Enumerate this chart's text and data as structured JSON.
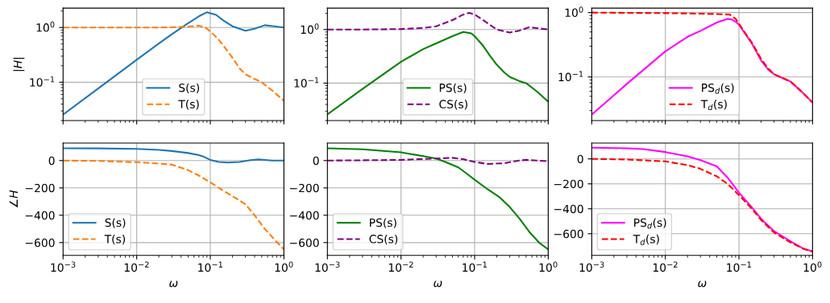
{
  "chart_data": [
    {
      "type": "line",
      "log": "xy",
      "ylabel": "|H|",
      "xlim": [
        0.001,
        1
      ],
      "ylim": [
        0.02,
        2.25
      ],
      "xticks": [
        {
          "value": 0.001,
          "label": null
        },
        {
          "value": 0.01,
          "label": null
        },
        {
          "value": 0.1,
          "label": null
        },
        {
          "value": 1,
          "label": null
        }
      ],
      "yticks": [
        {
          "value": 0.1,
          "label": "10$^{−1}$"
        },
        {
          "value": 1,
          "label": "10$^{0}$"
        }
      ],
      "tick_labels": "y",
      "grid": true,
      "legend": "bottom",
      "series": [
        {
          "name": "S(s)",
          "color": "#1f77b4",
          "line_style": "solid",
          "x": [
            0.001,
            0.003,
            0.01,
            0.02,
            0.03,
            0.04,
            0.05,
            0.07,
            0.09,
            0.12,
            0.15,
            0.2,
            0.3,
            0.4,
            0.55,
            0.7,
            1
          ],
          "values": [
            0.0258,
            0.077,
            0.258,
            0.51,
            0.75,
            0.98,
            1.2,
            1.6,
            1.9,
            1.7,
            1.35,
            1.05,
            0.87,
            0.95,
            1.1,
            1.06,
            1.0
          ]
        },
        {
          "name": "T(s)",
          "color": "#ff7f0e",
          "line_style": "dashed",
          "x": [
            0.001,
            0.003,
            0.01,
            0.02,
            0.03,
            0.05,
            0.07,
            0.085,
            0.1,
            0.13,
            0.16,
            0.2,
            0.25,
            0.3,
            0.4,
            0.5,
            0.7,
            1
          ],
          "values": [
            1.0,
            1.0,
            1.0,
            1.0,
            1.01,
            1.04,
            1.08,
            1.0,
            0.85,
            0.6,
            0.42,
            0.28,
            0.18,
            0.14,
            0.115,
            0.1,
            0.07,
            0.046
          ]
        }
      ]
    },
    {
      "type": "line",
      "log": "xy",
      "xlim": [
        0.001,
        1
      ],
      "ylim": [
        0.02,
        2.5
      ],
      "xticks": [
        {
          "value": 0.001,
          "label": null
        },
        {
          "value": 0.01,
          "label": null
        },
        {
          "value": 0.1,
          "label": null
        },
        {
          "value": 1,
          "label": null
        }
      ],
      "yticks": [
        {
          "value": 0.1,
          "label": "10$^{−1}$"
        },
        {
          "value": 1,
          "label": "10$^{0}$"
        }
      ],
      "tick_labels": "y",
      "grid": true,
      "legend": "bottom",
      "series": [
        {
          "name": "PS(s)",
          "color": "#008000",
          "line_style": "solid",
          "x": [
            0.001,
            0.003,
            0.01,
            0.02,
            0.03,
            0.05,
            0.07,
            0.09,
            0.1,
            0.13,
            0.16,
            0.2,
            0.25,
            0.3,
            0.4,
            0.5,
            0.7,
            1
          ],
          "values": [
            0.026,
            0.078,
            0.25,
            0.43,
            0.55,
            0.75,
            0.9,
            0.85,
            0.75,
            0.5,
            0.33,
            0.22,
            0.16,
            0.13,
            0.11,
            0.1,
            0.07,
            0.045
          ]
        },
        {
          "name": "CS(s)",
          "color": "#800080",
          "line_style": "dashed",
          "x": [
            0.001,
            0.003,
            0.01,
            0.02,
            0.03,
            0.05,
            0.07,
            0.085,
            0.1,
            0.13,
            0.2,
            0.3,
            0.4,
            0.55,
            0.7,
            1
          ],
          "values": [
            1.0,
            1.0,
            1.02,
            1.07,
            1.15,
            1.5,
            1.9,
            2.05,
            1.9,
            1.5,
            1.0,
            0.88,
            0.95,
            1.1,
            1.06,
            1.0
          ]
        }
      ]
    },
    {
      "type": "line",
      "log": "xy",
      "xlim": [
        0.001,
        1
      ],
      "ylim": [
        0.021,
        1.17
      ],
      "xticks": [
        {
          "value": 0.001,
          "label": null
        },
        {
          "value": 0.01,
          "label": null
        },
        {
          "value": 0.1,
          "label": null
        },
        {
          "value": 1,
          "label": null
        }
      ],
      "yticks": [
        {
          "value": 0.1,
          "label": "10$^{−1}$"
        },
        {
          "value": 1,
          "label": "10$^{0}$"
        }
      ],
      "tick_labels": "y",
      "grid": true,
      "legend": "bottom",
      "series": [
        {
          "name": "PS$_{d}$(s)",
          "color": "#ff00ff",
          "line_style": "solid",
          "x": [
            0.001,
            0.003,
            0.01,
            0.02,
            0.03,
            0.05,
            0.07,
            0.08,
            0.09,
            0.1,
            0.13,
            0.15,
            0.2,
            0.25,
            0.3,
            0.4,
            0.5,
            0.7,
            1
          ],
          "values": [
            0.026,
            0.078,
            0.25,
            0.42,
            0.52,
            0.7,
            0.8,
            0.78,
            0.72,
            0.65,
            0.42,
            0.33,
            0.18,
            0.13,
            0.11,
            0.095,
            0.085,
            0.06,
            0.04
          ]
        },
        {
          "name": "T$_{d}$(s)",
          "color": "#ff0000",
          "line_style": "dashed",
          "x": [
            0.001,
            0.003,
            0.01,
            0.02,
            0.03,
            0.05,
            0.075,
            0.09,
            0.1,
            0.13,
            0.15,
            0.2,
            0.25,
            0.3,
            0.4,
            0.5,
            0.7,
            1
          ],
          "values": [
            1.0,
            0.99,
            0.98,
            0.97,
            0.96,
            0.95,
            0.93,
            0.8,
            0.67,
            0.43,
            0.34,
            0.19,
            0.135,
            0.11,
            0.095,
            0.085,
            0.06,
            0.04
          ]
        }
      ]
    },
    {
      "type": "line",
      "log": "x",
      "ylabel": "∠H",
      "xlabel": "ω",
      "xlim": [
        0.001,
        1
      ],
      "ylim": [
        -694,
        128
      ],
      "xticks": [
        {
          "value": 0.001,
          "label": "10$^{−3}$"
        },
        {
          "value": 0.01,
          "label": "10$^{−2}$"
        },
        {
          "value": 0.1,
          "label": "10$^{−1}$"
        },
        {
          "value": 1,
          "label": "10$^{0}$"
        }
      ],
      "yticks": [
        {
          "value": -600,
          "label": "−600"
        },
        {
          "value": -400,
          "label": "−400"
        },
        {
          "value": -200,
          "label": "−200"
        },
        0
      ],
      "grid": true,
      "legend": "bottom left",
      "series": [
        {
          "name": "S(s)",
          "color": "#1f77b4",
          "line_style": "solid",
          "x": [
            0.001,
            0.003,
            0.01,
            0.02,
            0.03,
            0.05,
            0.07,
            0.08,
            0.1,
            0.13,
            0.17,
            0.25,
            0.35,
            0.45,
            0.6,
            0.7,
            1
          ],
          "values": [
            90,
            89,
            85,
            78,
            70,
            55,
            40,
            30,
            5,
            -10,
            -15,
            -10,
            3,
            8,
            3,
            0,
            0
          ]
        },
        {
          "name": "T(s)",
          "color": "#ff7f0e",
          "line_style": "dashed",
          "x": [
            0.001,
            0.003,
            0.01,
            0.02,
            0.03,
            0.05,
            0.07,
            0.1,
            0.15,
            0.2,
            0.3,
            0.4,
            0.55,
            0.75,
            1
          ],
          "values": [
            0,
            -3,
            -12,
            -22,
            -30,
            -70,
            -110,
            -160,
            -220,
            -260,
            -320,
            -400,
            -500,
            -580,
            -650
          ]
        }
      ]
    },
    {
      "type": "line",
      "log": "x",
      "xlabel": "ω",
      "xlim": [
        0.001,
        1
      ],
      "ylim": [
        -694,
        128
      ],
      "xticks": [
        {
          "value": 0.001,
          "label": "10$^{−3}$"
        },
        {
          "value": 0.01,
          "label": "10$^{−2}$"
        },
        {
          "value": 0.1,
          "label": "10$^{−1}$"
        },
        {
          "value": 1,
          "label": "10$^{0}$"
        }
      ],
      "yticks": [
        {
          "value": -600,
          "label": "−600"
        },
        {
          "value": -400,
          "label": "−400"
        },
        {
          "value": -200,
          "label": "−200"
        },
        0
      ],
      "grid": true,
      "legend": "bottom left",
      "series": [
        {
          "name": "PS(s)",
          "color": "#008000",
          "line_style": "solid",
          "x": [
            0.001,
            0.003,
            0.01,
            0.02,
            0.03,
            0.04,
            0.06,
            0.08,
            0.1,
            0.15,
            0.22,
            0.3,
            0.4,
            0.55,
            0.75,
            1
          ],
          "values": [
            90,
            82,
            60,
            32,
            15,
            -10,
            -50,
            -100,
            -140,
            -210,
            -270,
            -340,
            -420,
            -520,
            -600,
            -650
          ]
        },
        {
          "name": "CS(s)",
          "color": "#800080",
          "line_style": "dashed",
          "x": [
            0.001,
            0.003,
            0.01,
            0.03,
            0.05,
            0.07,
            0.1,
            0.15,
            0.25,
            0.4,
            0.5,
            0.7,
            1
          ],
          "values": [
            0,
            2,
            5,
            15,
            20,
            10,
            -10,
            -25,
            -20,
            0,
            5,
            0,
            -5
          ]
        }
      ]
    },
    {
      "type": "line",
      "log": "x",
      "xlabel": "ω",
      "xlim": [
        0.001,
        1
      ],
      "ylim": [
        -774,
        127
      ],
      "xticks": [
        {
          "value": 0.001,
          "label": "10$^{−3}$"
        },
        {
          "value": 0.01,
          "label": "10$^{−2}$"
        },
        {
          "value": 0.1,
          "label": "10$^{−1}$"
        },
        {
          "value": 1,
          "label": "10$^{0}$"
        }
      ],
      "yticks": [
        {
          "value": -600,
          "label": "−600"
        },
        {
          "value": -400,
          "label": "−400"
        },
        {
          "value": -200,
          "label": "−200"
        },
        0
      ],
      "grid": true,
      "legend": "bottom left",
      "series": [
        {
          "name": "PS$_{d}$(s)",
          "color": "#ff00ff",
          "line_style": "solid",
          "x": [
            0.001,
            0.003,
            0.005,
            0.01,
            0.02,
            0.03,
            0.05,
            0.07,
            0.1,
            0.15,
            0.2,
            0.3,
            0.5,
            0.75,
            1
          ],
          "values": [
            90,
            85,
            78,
            55,
            20,
            -10,
            -60,
            -150,
            -270,
            -390,
            -480,
            -580,
            -660,
            -720,
            -740
          ]
        },
        {
          "name": "T$_{d}$(s)",
          "color": "#ff0000",
          "line_style": "dashed",
          "x": [
            0.001,
            0.003,
            0.01,
            0.02,
            0.03,
            0.05,
            0.07,
            0.1,
            0.15,
            0.2,
            0.3,
            0.5,
            0.75,
            1
          ],
          "values": [
            0,
            -5,
            -20,
            -50,
            -80,
            -140,
            -200,
            -290,
            -400,
            -490,
            -590,
            -670,
            -720,
            -745
          ]
        }
      ]
    }
  ]
}
